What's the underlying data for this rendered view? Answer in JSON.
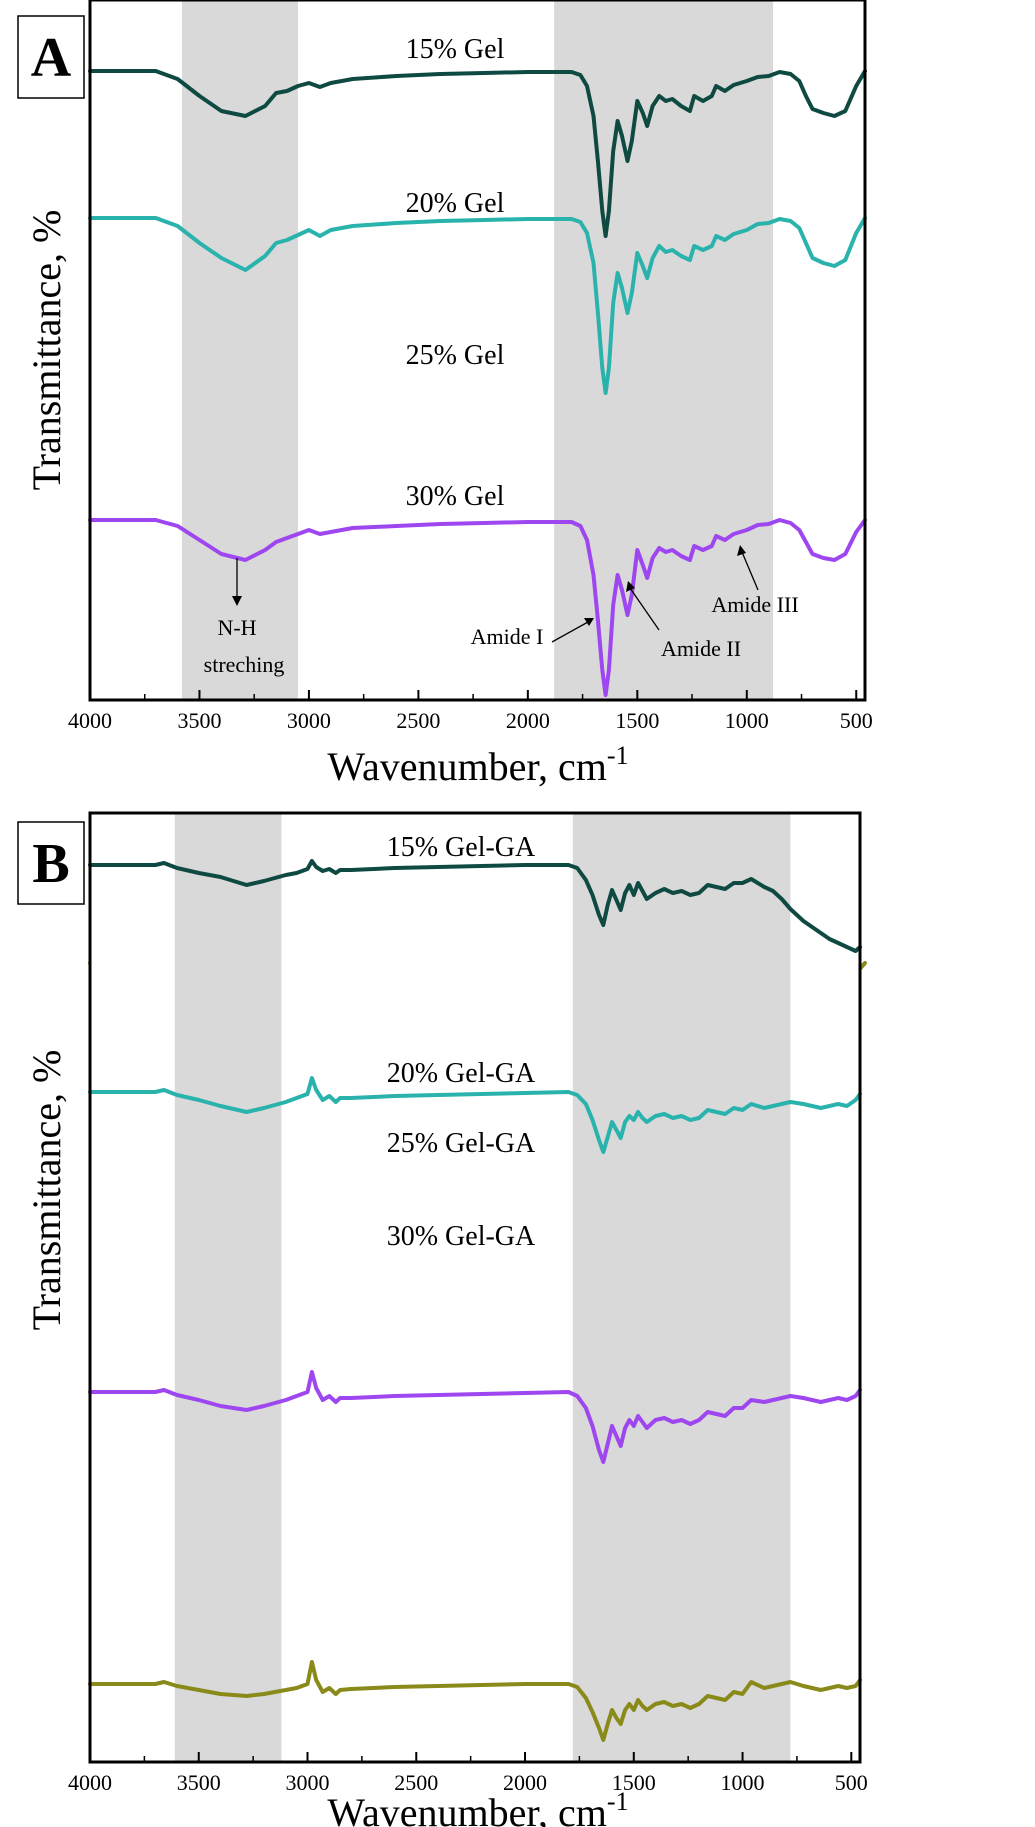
{
  "chart_data": [
    {
      "panel": "A",
      "type": "line",
      "xlabel": "Wavenumber, cm",
      "xlabel_sup": "-1",
      "ylabel": "Transmittance, %",
      "xlim": [
        4000,
        460
      ],
      "x_reversed": true,
      "x_ticks": [
        4000,
        3500,
        3000,
        2500,
        2000,
        1500,
        1000,
        500
      ],
      "shaded_regions": [
        [
          3580,
          3050
        ],
        [
          1880,
          880
        ]
      ],
      "series": [
        {
          "name": "15% Gel",
          "color": "#0f4a42",
          "offset": 0,
          "x": [
            4000,
            3700,
            3600,
            3500,
            3400,
            3290,
            3200,
            3150,
            3100,
            3050,
            3000,
            2950,
            2900,
            2800,
            2600,
            2400,
            2200,
            2000,
            1800,
            1760,
            1730,
            1700,
            1680,
            1660,
            1645,
            1630,
            1610,
            1590,
            1570,
            1545,
            1525,
            1500,
            1475,
            1455,
            1430,
            1400,
            1370,
            1340,
            1300,
            1260,
            1240,
            1200,
            1160,
            1140,
            1100,
            1060,
            1000,
            950,
            900,
            850,
            800,
            760,
            730,
            700,
            650,
            600,
            550,
            500,
            460
          ],
          "y": [
            0,
            0,
            -8,
            -25,
            -40,
            -45,
            -35,
            -22,
            -20,
            -15,
            -12,
            -16,
            -12,
            -8,
            -5,
            -3,
            -2,
            -1,
            -1,
            -4,
            -15,
            -45,
            -90,
            -140,
            -165,
            -140,
            -80,
            -50,
            -65,
            -90,
            -70,
            -30,
            -42,
            -55,
            -35,
            -25,
            -30,
            -28,
            -35,
            -40,
            -25,
            -30,
            -25,
            -15,
            -20,
            -14,
            -10,
            -6,
            -5,
            -1,
            -3,
            -10,
            -25,
            -38,
            -42,
            -45,
            -40,
            -15,
            0
          ]
        },
        {
          "name": "20% Gel",
          "color": "#2ab3ac",
          "offset": 147,
          "x": [
            4000,
            3700,
            3600,
            3500,
            3400,
            3290,
            3200,
            3150,
            3100,
            3050,
            3000,
            2950,
            2900,
            2800,
            2600,
            2400,
            2200,
            2000,
            1800,
            1760,
            1730,
            1700,
            1680,
            1660,
            1645,
            1630,
            1610,
            1590,
            1570,
            1545,
            1525,
            1500,
            1475,
            1455,
            1430,
            1400,
            1370,
            1340,
            1300,
            1260,
            1240,
            1200,
            1160,
            1140,
            1100,
            1060,
            1000,
            950,
            900,
            850,
            800,
            760,
            730,
            700,
            650,
            600,
            550,
            500,
            460
          ],
          "y": [
            0,
            0,
            -8,
            -25,
            -40,
            -52,
            -38,
            -25,
            -22,
            -17,
            -12,
            -18,
            -12,
            -8,
            -5,
            -3,
            -2,
            -1,
            -1,
            -4,
            -15,
            -45,
            -95,
            -150,
            -175,
            -150,
            -85,
            -55,
            -70,
            -95,
            -75,
            -35,
            -48,
            -60,
            -40,
            -28,
            -34,
            -32,
            -38,
            -42,
            -28,
            -32,
            -28,
            -18,
            -22,
            -16,
            -12,
            -6,
            -5,
            -1,
            -3,
            -10,
            -25,
            -40,
            -45,
            -48,
            -42,
            -15,
            0
          ]
        },
        {
          "name": "25% Gel",
          "color": "#9e46f0",
          "offset": 302,
          "x": [
            4000,
            3700,
            3600,
            3500,
            3400,
            3290,
            3200,
            3150,
            3100,
            3050,
            3000,
            2950,
            2900,
            2800,
            2600,
            2400,
            2200,
            2000,
            1800,
            1760,
            1730,
            1700,
            1680,
            1660,
            1645,
            1630,
            1610,
            1590,
            1570,
            1545,
            1525,
            1500,
            1475,
            1455,
            1430,
            1400,
            1370,
            1340,
            1300,
            1260,
            1240,
            1200,
            1160,
            1140,
            1100,
            1060,
            1000,
            950,
            900,
            850,
            800,
            760,
            730,
            700,
            650,
            600,
            550,
            500,
            460
          ],
          "y": [
            0,
            0,
            -6,
            -20,
            -34,
            -40,
            -30,
            -22,
            -18,
            -14,
            -10,
            -14,
            -12,
            -8,
            -6,
            -4,
            -3,
            -2,
            -2,
            -6,
            -20,
            -55,
            -100,
            -150,
            -175,
            -150,
            -85,
            -55,
            -70,
            -95,
            -75,
            -30,
            -45,
            -58,
            -38,
            -28,
            -32,
            -30,
            -36,
            -40,
            -26,
            -30,
            -26,
            -16,
            -20,
            -14,
            -10,
            -5,
            -4,
            0,
            -3,
            -10,
            -22,
            -34,
            -38,
            -40,
            -34,
            -12,
            0
          ]
        },
        {
          "name": "30% Gel",
          "color": "#8a8a1a",
          "offset": 443,
          "x": [
            4000,
            3700,
            3600,
            3500,
            3400,
            3290,
            3200,
            3150,
            3100,
            3050,
            3000,
            2950,
            2900,
            2800,
            2600,
            2400,
            2200,
            2000,
            1800,
            1760,
            1730,
            1700,
            1680,
            1660,
            1645,
            1630,
            1610,
            1590,
            1570,
            1545,
            1525,
            1500,
            1475,
            1455,
            1430,
            1400,
            1370,
            1340,
            1300,
            1260,
            1240,
            1200,
            1160,
            1140,
            1100,
            1060,
            1000,
            950,
            900,
            850,
            800,
            760,
            730,
            700,
            650,
            600,
            550,
            500,
            460
          ],
          "y": [
            0,
            0,
            -6,
            -18,
            -30,
            -36,
            -28,
            -20,
            -18,
            -15,
            -5,
            -16,
            -13,
            -10,
            -7,
            -5,
            -3,
            -2,
            -1,
            -6,
            -20,
            -60,
            -110,
            -150,
            -150,
            -130,
            -80,
            -50,
            -65,
            -90,
            -70,
            -28,
            -42,
            -55,
            -36,
            -26,
            -30,
            -28,
            -34,
            -38,
            -22,
            -26,
            -22,
            -10,
            -14,
            -10,
            -4,
            -2,
            -2,
            0,
            -4,
            -14,
            -26,
            -34,
            -36,
            -38,
            -32,
            -10,
            0
          ]
        }
      ]
    },
    {
      "panel": "B",
      "type": "line",
      "xlabel": "Wavenumber, cm",
      "xlabel_sup": "-1",
      "ylabel": "Transmittance, %",
      "xlim": [
        4000,
        460
      ],
      "x_reversed": true,
      "x_ticks": [
        4000,
        3500,
        3000,
        2500,
        2000,
        1500,
        1000,
        500
      ],
      "shaded_regions": [
        [
          3610,
          3120
        ],
        [
          1780,
          780
        ]
      ],
      "series": [
        {
          "name": "15% Gel-GA",
          "color": "#0f4a42",
          "offset": 0,
          "x": [
            4000,
            3700,
            3660,
            3600,
            3500,
            3400,
            3280,
            3200,
            3100,
            3050,
            3000,
            2980,
            2960,
            2930,
            2900,
            2870,
            2850,
            2800,
            2600,
            2400,
            2200,
            2000,
            1800,
            1760,
            1720,
            1690,
            1660,
            1640,
            1620,
            1600,
            1580,
            1560,
            1540,
            1520,
            1500,
            1480,
            1460,
            1440,
            1400,
            1360,
            1320,
            1280,
            1240,
            1200,
            1160,
            1120,
            1080,
            1040,
            1000,
            960,
            900,
            860,
            820,
            780,
            720,
            680,
            640,
            600,
            560,
            520,
            480,
            460
          ],
          "y": [
            0,
            0,
            2,
            -3,
            -8,
            -12,
            -20,
            -16,
            -10,
            -8,
            -4,
            4,
            -2,
            -6,
            -4,
            -8,
            -5,
            -5,
            -3,
            -2,
            -1,
            0,
            0,
            -3,
            -15,
            -30,
            -50,
            -60,
            -40,
            -25,
            -35,
            -45,
            -28,
            -20,
            -30,
            -18,
            -26,
            -34,
            -28,
            -24,
            -28,
            -26,
            -30,
            -28,
            -20,
            -22,
            -24,
            -18,
            -18,
            -14,
            -22,
            -26,
            -34,
            -44,
            -56,
            -62,
            -68,
            -74,
            -78,
            -82,
            -86,
            -82
          ]
        },
        {
          "name": "20% Gel-GA",
          "color": "#2ab3ac",
          "offset": 227,
          "x": [
            4000,
            3700,
            3660,
            3600,
            3500,
            3400,
            3280,
            3200,
            3100,
            3050,
            3000,
            2980,
            2960,
            2930,
            2900,
            2870,
            2850,
            2800,
            2600,
            2400,
            2200,
            2000,
            1800,
            1760,
            1720,
            1690,
            1660,
            1640,
            1620,
            1600,
            1580,
            1560,
            1540,
            1520,
            1500,
            1480,
            1460,
            1440,
            1400,
            1360,
            1320,
            1280,
            1240,
            1200,
            1160,
            1120,
            1080,
            1040,
            1000,
            960,
            900,
            860,
            820,
            780,
            720,
            680,
            640,
            600,
            560,
            520,
            480,
            460
          ],
          "y": [
            0,
            0,
            2,
            -3,
            -8,
            -14,
            -20,
            -16,
            -10,
            -6,
            -2,
            14,
            2,
            -8,
            -4,
            -10,
            -6,
            -6,
            -4,
            -3,
            -2,
            -1,
            0,
            -3,
            -12,
            -28,
            -48,
            -60,
            -45,
            -30,
            -38,
            -46,
            -30,
            -24,
            -28,
            -20,
            -26,
            -30,
            -24,
            -22,
            -26,
            -24,
            -28,
            -26,
            -18,
            -20,
            -22,
            -16,
            -18,
            -12,
            -16,
            -14,
            -12,
            -10,
            -12,
            -14,
            -16,
            -14,
            -12,
            -14,
            -8,
            -2
          ]
        },
        {
          "name": "25% Gel-GA",
          "color": "#9e46f0",
          "offset": 300,
          "x": [
            4000,
            3700,
            3660,
            3600,
            3500,
            3400,
            3280,
            3200,
            3100,
            3050,
            3000,
            2980,
            2960,
            2930,
            2900,
            2870,
            2850,
            2800,
            2600,
            2400,
            2200,
            2000,
            1800,
            1760,
            1720,
            1690,
            1660,
            1640,
            1620,
            1600,
            1580,
            1560,
            1540,
            1520,
            1500,
            1480,
            1460,
            1440,
            1400,
            1360,
            1320,
            1280,
            1240,
            1200,
            1160,
            1120,
            1080,
            1040,
            1000,
            960,
            900,
            860,
            820,
            780,
            720,
            680,
            640,
            600,
            560,
            520,
            480,
            460
          ],
          "y": [
            0,
            0,
            2,
            -3,
            -8,
            -14,
            -18,
            -14,
            -8,
            -4,
            0,
            20,
            4,
            -8,
            -4,
            -10,
            -6,
            -6,
            -4,
            -3,
            -2,
            -1,
            0,
            -4,
            -16,
            -34,
            -58,
            -70,
            -52,
            -34,
            -44,
            -54,
            -36,
            -28,
            -34,
            -24,
            -30,
            -36,
            -28,
            -26,
            -30,
            -28,
            -32,
            -28,
            -20,
            -22,
            -24,
            -16,
            -16,
            -8,
            -10,
            -8,
            -6,
            -4,
            -6,
            -8,
            -10,
            -8,
            -6,
            -8,
            -4,
            2
          ]
        },
        {
          "name": "30% Gel-GA",
          "color": "#8a8a1a",
          "offset": 292,
          "x": [
            4000,
            3700,
            3660,
            3600,
            3500,
            3400,
            3280,
            3200,
            3100,
            3050,
            3000,
            2980,
            2960,
            2930,
            2900,
            2870,
            2850,
            2800,
            2600,
            2400,
            2200,
            2000,
            1800,
            1760,
            1720,
            1690,
            1660,
            1640,
            1620,
            1600,
            1580,
            1560,
            1540,
            1520,
            1500,
            1480,
            1460,
            1440,
            1400,
            1360,
            1320,
            1280,
            1240,
            1200,
            1160,
            1120,
            1080,
            1040,
            1000,
            960,
            900,
            860,
            820,
            780,
            720,
            680,
            640,
            600,
            560,
            520,
            480,
            460
          ],
          "y": [
            0,
            0,
            2,
            -2,
            -6,
            -10,
            -12,
            -10,
            -6,
            -4,
            0,
            22,
            4,
            -8,
            -4,
            -10,
            -6,
            -5,
            -3,
            -2,
            -1,
            0,
            0,
            -3,
            -14,
            -28,
            -44,
            -56,
            -40,
            -26,
            -34,
            -40,
            -26,
            -20,
            -26,
            -16,
            -22,
            -26,
            -20,
            -18,
            -22,
            -20,
            -24,
            -20,
            -12,
            -14,
            -16,
            -8,
            -10,
            2,
            -4,
            -2,
            0,
            2,
            -2,
            -4,
            -6,
            -4,
            -2,
            -4,
            -2,
            4
          ]
        }
      ]
    }
  ],
  "panels": [
    {
      "letter": "A",
      "annotations": {
        "nh_line1": "N-H",
        "nh_line2": "streching",
        "amide1": "Amide I",
        "amide2": "Amide II",
        "amide3": "Amide III"
      }
    },
    {
      "letter": "B"
    }
  ]
}
